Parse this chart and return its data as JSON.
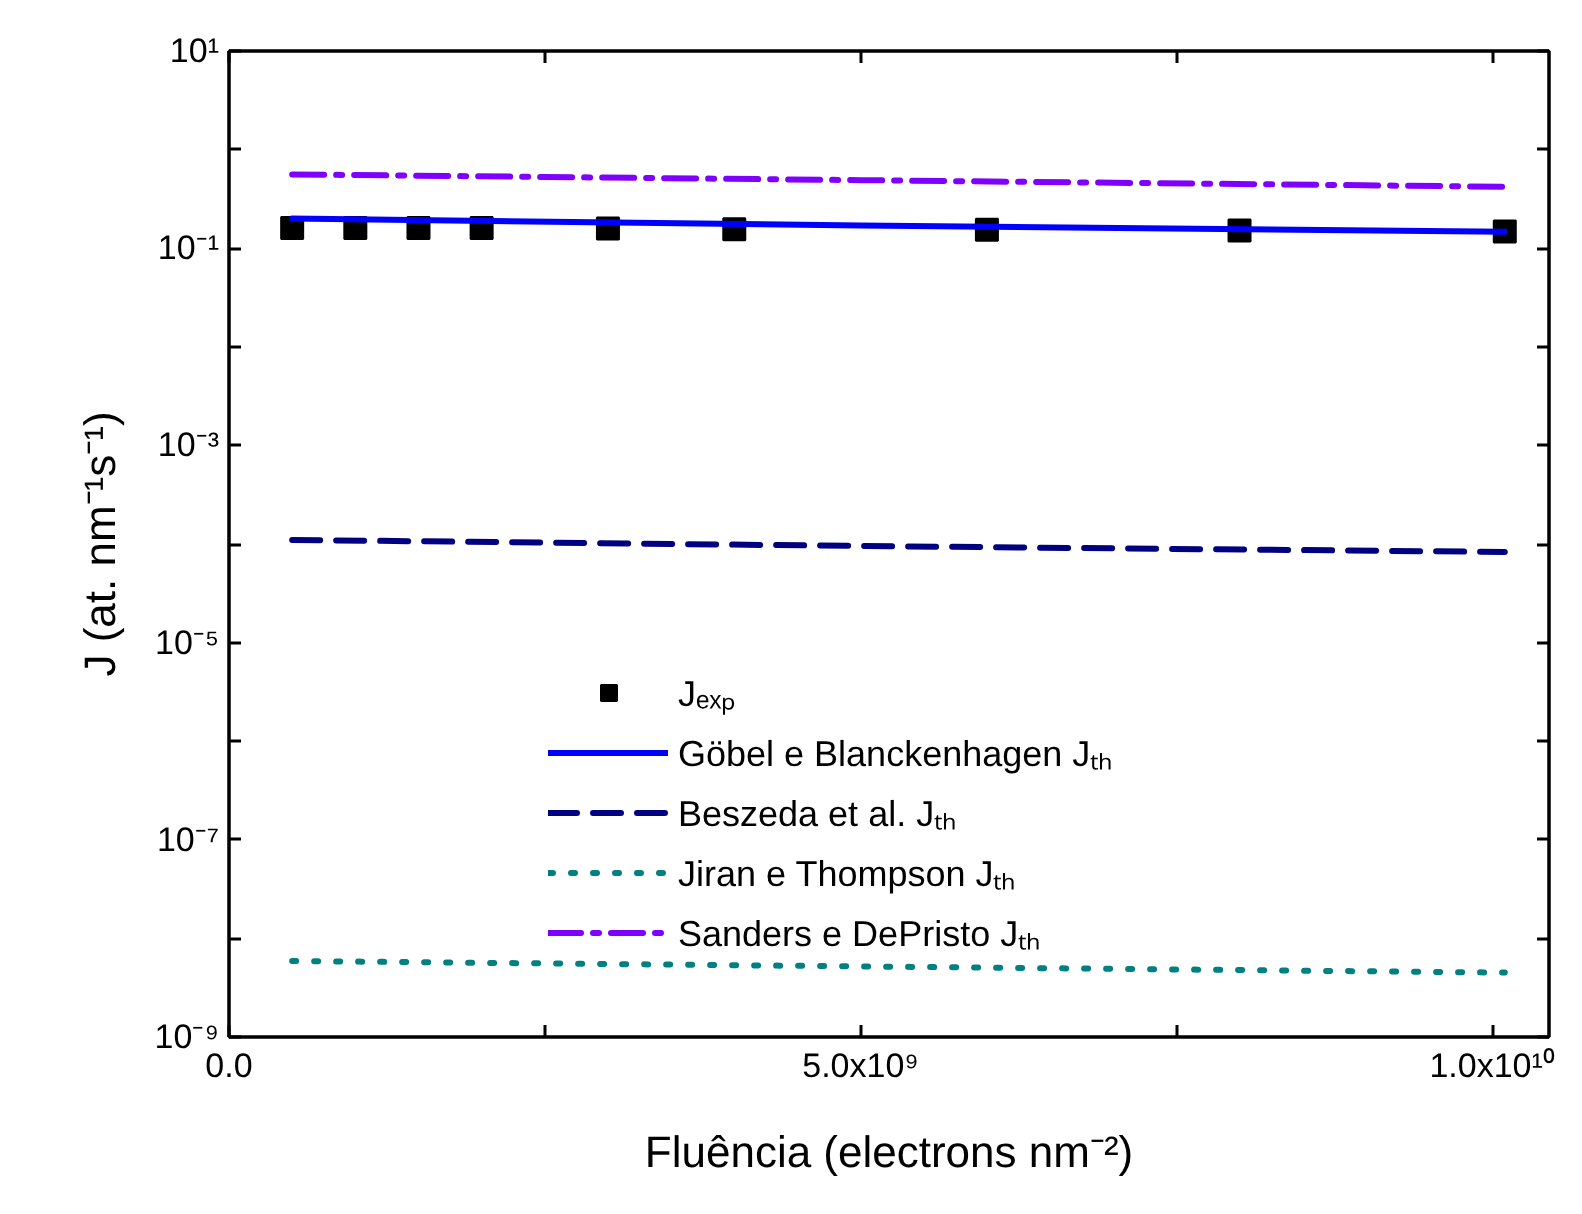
{
  "chart_data": {
    "type": "line",
    "xlabel": "Fluência (electrons nm⁻²)",
    "ylabel": "J (at. nm⁻¹s⁻¹)",
    "log": "y",
    "xlim": [
      0,
      10450000000.0
    ],
    "ylim": [
      1e-09,
      10
    ],
    "xticks": [
      {
        "value": 0,
        "label": "0.0"
      },
      {
        "value": 2500000000.0,
        "label": null
      },
      {
        "value": 5000000000.0,
        "label": "5.0x10⁹"
      },
      {
        "value": 7500000000.0,
        "label": null
      },
      {
        "value": 10000000000.0,
        "label": "1.0x10¹⁰"
      }
    ],
    "yticks": [
      {
        "value": 1e-09,
        "label": "10⁻⁹"
      },
      {
        "value": 1e-08,
        "label": null
      },
      {
        "value": 1e-07,
        "label": "10⁻⁷"
      },
      {
        "value": 1e-06,
        "label": null
      },
      {
        "value": 1e-05,
        "label": "10⁻⁵"
      },
      {
        "value": 0.0001,
        "label": null
      },
      {
        "value": 0.001,
        "label": "10⁻³"
      },
      {
        "value": 0.01,
        "label": null
      },
      {
        "value": 0.1,
        "label": "10⁻¹"
      },
      {
        "value": 1,
        "label": null
      },
      {
        "value": 10,
        "label": "10¹"
      }
    ],
    "grid": false,
    "legend": "bottom left",
    "series": [
      {
        "name": "Jₑₓₚ",
        "type": "scatter",
        "marker": "square",
        "color": "#000000",
        "x": [
          500000000.0,
          1000000000.0,
          1500000000.0,
          2000000000.0,
          3000000000.0,
          4000000000.0,
          6000000000.0,
          8000000000.0,
          10100000000.0
        ],
        "values": [
          0.16,
          0.16,
          0.16,
          0.16,
          0.158,
          0.156,
          0.154,
          0.151,
          0.148
        ]
      },
      {
        "name": "Göbel e Blanckenhagen Jₜₕ",
        "line_style": "solid",
        "color": "#0000ff",
        "x": [
          500000000.0,
          5000000000.0,
          10100000000.0
        ],
        "values": [
          0.2,
          0.17,
          0.147
        ]
      },
      {
        "name": "Beszeda et al. Jₜₕ",
        "line_style": "dashed",
        "color": "#000080",
        "x": [
          500000000.0,
          5000000000.0,
          10100000000.0
        ],
        "values": [
          0.00011,
          9.55e-05,
          8.3e-05
        ]
      },
      {
        "name": "Jiran e Thompson Jₜₕ",
        "line_style": "dotted",
        "color": "#008080",
        "x": [
          500000000.0,
          5000000000.0,
          10100000000.0
        ],
        "values": [
          5.9e-09,
          5.2e-09,
          4.5e-09
        ]
      },
      {
        "name": "Sanders e DePristo Jₜₕ",
        "line_style": "dashdot",
        "color": "#8000ff",
        "x": [
          500000000.0,
          5000000000.0,
          10100000000.0
        ],
        "values": [
          0.56,
          0.49,
          0.42
        ]
      }
    ]
  }
}
